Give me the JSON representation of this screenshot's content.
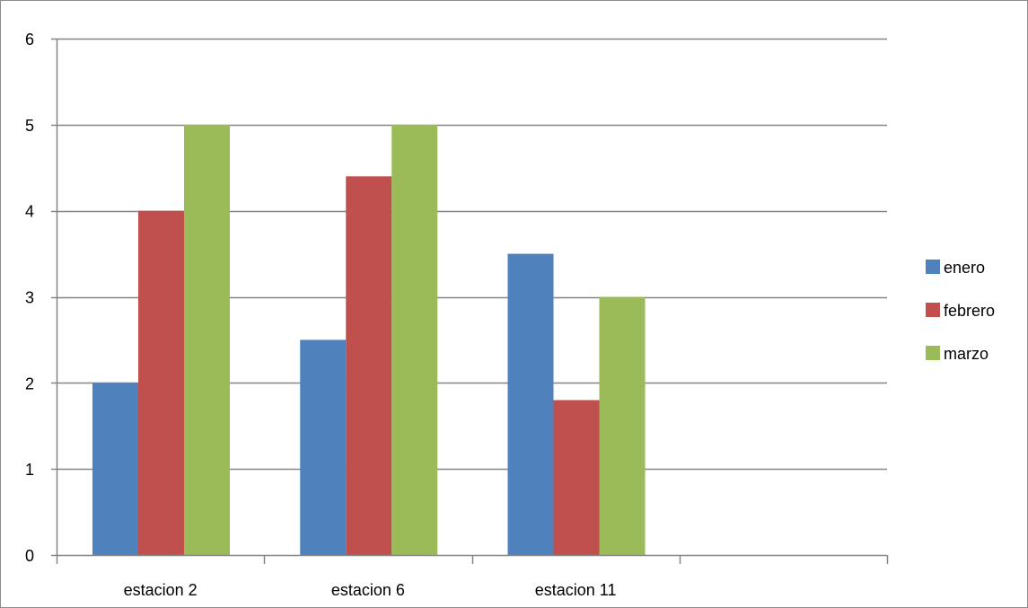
{
  "chart_data": {
    "type": "bar",
    "title": "",
    "xlabel": "",
    "ylabel": "",
    "categories": [
      "estacion 2",
      "estacion 6",
      "estacion 11",
      ""
    ],
    "series": [
      {
        "name": "enero",
        "color": "#4F81BD",
        "values": [
          2,
          2.5,
          3.5,
          null
        ]
      },
      {
        "name": "febrero",
        "color": "#C0504D",
        "values": [
          4,
          4.4,
          1.8,
          null
        ]
      },
      {
        "name": "marzo",
        "color": "#9BBB59",
        "values": [
          5,
          5,
          3,
          null
        ]
      }
    ],
    "ylim": [
      0,
      6
    ],
    "yticks": [
      0,
      1,
      2,
      3,
      4,
      5,
      6
    ],
    "grid": true,
    "legend_position": "right",
    "gridline_color": "#868686",
    "axis_color": "#868686"
  }
}
